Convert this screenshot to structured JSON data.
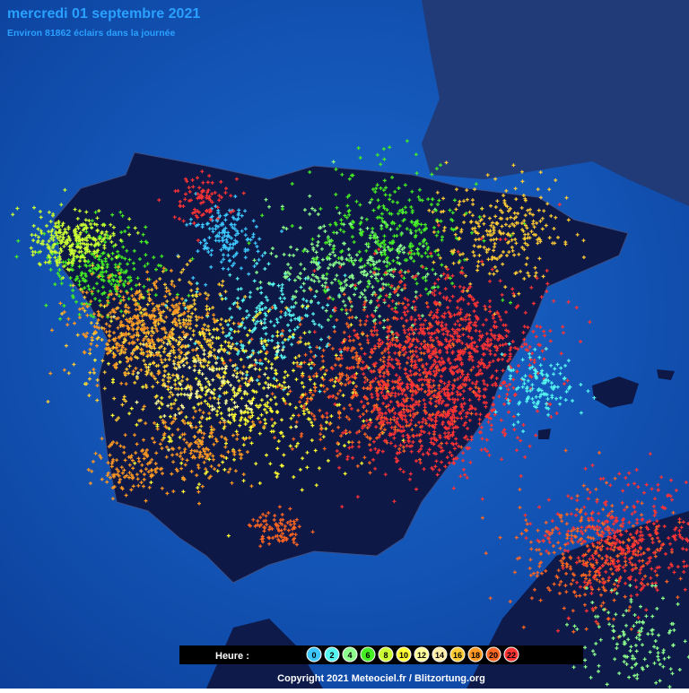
{
  "header": {
    "title": "mercredi 01 septembre 2021",
    "subtitle": "Environ 81862 éclairs dans la journée"
  },
  "legend": {
    "label": "Heure :",
    "items": [
      {
        "label": "0",
        "color": "#3cc8ff"
      },
      {
        "label": "2",
        "color": "#55f5f0"
      },
      {
        "label": "4",
        "color": "#8cff8c"
      },
      {
        "label": "6",
        "color": "#44ee22"
      },
      {
        "label": "8",
        "color": "#ccff33"
      },
      {
        "label": "10",
        "color": "#ffff33"
      },
      {
        "label": "12",
        "color": "#ffff99"
      },
      {
        "label": "14",
        "color": "#ffeeaa"
      },
      {
        "label": "16",
        "color": "#ffcc33"
      },
      {
        "label": "18",
        "color": "#ff9922"
      },
      {
        "label": "20",
        "color": "#ff6622"
      },
      {
        "label": "22",
        "color": "#ff3333"
      }
    ]
  },
  "footer": {
    "copyright": "Copyright 2021 Meteociel.fr / Blitzortung.org"
  }
}
